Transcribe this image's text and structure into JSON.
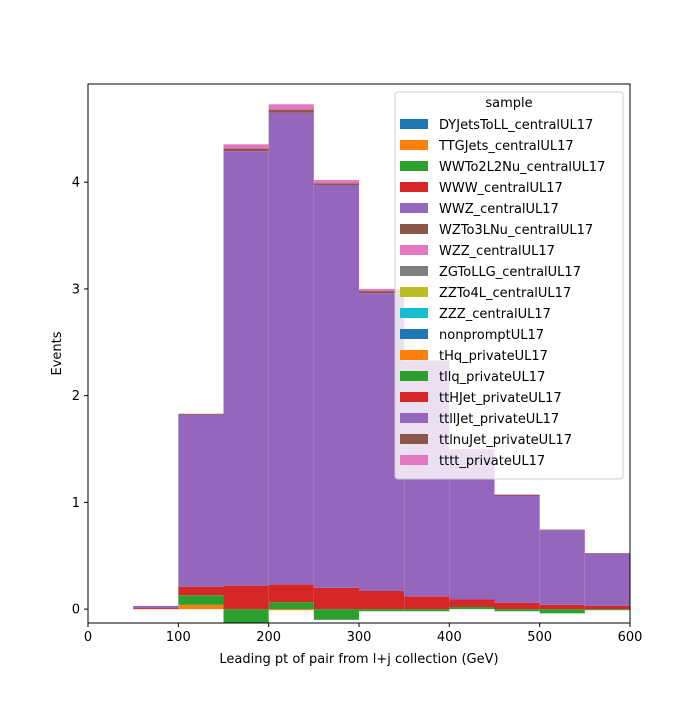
{
  "chart_data": {
    "type": "bar",
    "stacked": true,
    "histogram": true,
    "title": "",
    "xlabel": "Leading pt of pair from l+j collection (GeV)",
    "ylabel": "Events",
    "xlim": [
      0,
      600
    ],
    "ylim": [
      -0.13,
      4.92
    ],
    "xticks": [
      0,
      100,
      200,
      300,
      400,
      500,
      600
    ],
    "yticks": [
      0,
      1,
      2,
      3,
      4
    ],
    "bin_edges": [
      50,
      100,
      150,
      200,
      250,
      300,
      350,
      400,
      450,
      500,
      550,
      600
    ],
    "grid": false,
    "legend": {
      "title": "sample",
      "position": "top-right"
    },
    "series": [
      {
        "name": "DYJetsToLL_centralUL17",
        "color": "#1f77b4",
        "values": [
          0,
          0,
          0,
          0,
          0,
          0,
          0,
          0,
          0,
          0,
          0
        ]
      },
      {
        "name": "TTGJets_centralUL17",
        "color": "#ff7f0e",
        "values": [
          0,
          0.04,
          0,
          -0.01,
          0,
          0,
          0,
          0,
          0,
          0,
          0
        ]
      },
      {
        "name": "WWTo2L2Nu_centralUL17",
        "color": "#2ca02c",
        "values": [
          0,
          0.09,
          -0.15,
          0.065,
          -0.1,
          -0.02,
          -0.02,
          0.02,
          -0.02,
          -0.04,
          -0.01
        ]
      },
      {
        "name": "WWW_centralUL17",
        "color": "#d62728",
        "values": [
          0.01,
          0.08,
          0.22,
          0.165,
          0.2,
          0.17,
          0.12,
          0.07,
          0.06,
          0.04,
          0.03
        ]
      },
      {
        "name": "WWZ_centralUL17",
        "color": "#9467bd",
        "values": [
          0.02,
          1.61,
          4.07,
          4.42,
          3.77,
          2.79,
          2.19,
          1.39,
          1.0,
          0.7,
          0.49
        ]
      },
      {
        "name": "WZTo3LNu_centralUL17",
        "color": "#8c564b",
        "values": [
          0,
          0.01,
          0.025,
          0.03,
          0.02,
          0.02,
          0.01,
          0.01,
          0.01,
          0.005,
          0.005
        ]
      },
      {
        "name": "WZZ_centralUL17",
        "color": "#e377c2",
        "values": [
          0,
          0,
          0.04,
          0.05,
          0.03,
          0.02,
          0.01,
          0.01,
          0.005,
          0,
          0
        ]
      },
      {
        "name": "ZGToLLG_centralUL17",
        "color": "#7f7f7f",
        "values": [
          0,
          0,
          0,
          0,
          0,
          0,
          0,
          0,
          0,
          0,
          0
        ]
      },
      {
        "name": "ZZTo4L_centralUL17",
        "color": "#bcbd22",
        "values": [
          0,
          0,
          0,
          0,
          0,
          0,
          0,
          0,
          0,
          0,
          0
        ]
      },
      {
        "name": "ZZZ_centralUL17",
        "color": "#17becf",
        "values": [
          0,
          0,
          0,
          0,
          0,
          0,
          0,
          0,
          0,
          0,
          0
        ]
      },
      {
        "name": "nonpromptUL17",
        "color": "#1f77b4",
        "values": [
          0,
          0,
          0,
          0,
          0,
          0,
          0,
          0,
          0,
          0,
          0
        ]
      },
      {
        "name": "tHq_privateUL17",
        "color": "#ff7f0e",
        "values": [
          0,
          0,
          0,
          0,
          0,
          0,
          0,
          0,
          0,
          0,
          0
        ]
      },
      {
        "name": "tllq_privateUL17",
        "color": "#2ca02c",
        "values": [
          0,
          0,
          0,
          0,
          0,
          0,
          0,
          0,
          0,
          0,
          0
        ]
      },
      {
        "name": "ttHJet_privateUL17",
        "color": "#d62728",
        "values": [
          0,
          0,
          0,
          0,
          0,
          0,
          0,
          0,
          0,
          0,
          0
        ]
      },
      {
        "name": "ttllJet_privateUL17",
        "color": "#9467bd",
        "values": [
          0,
          0,
          0,
          0,
          0,
          0,
          0,
          0,
          0,
          0,
          0
        ]
      },
      {
        "name": "ttlnuJet_privateUL17",
        "color": "#8c564b",
        "values": [
          0,
          0,
          0,
          0,
          0,
          0,
          0,
          0,
          0,
          0,
          0
        ]
      },
      {
        "name": "tttt_privateUL17",
        "color": "#e377c2",
        "values": [
          0,
          0,
          0,
          0,
          0,
          0,
          0,
          0,
          0,
          0,
          0
        ]
      }
    ]
  }
}
